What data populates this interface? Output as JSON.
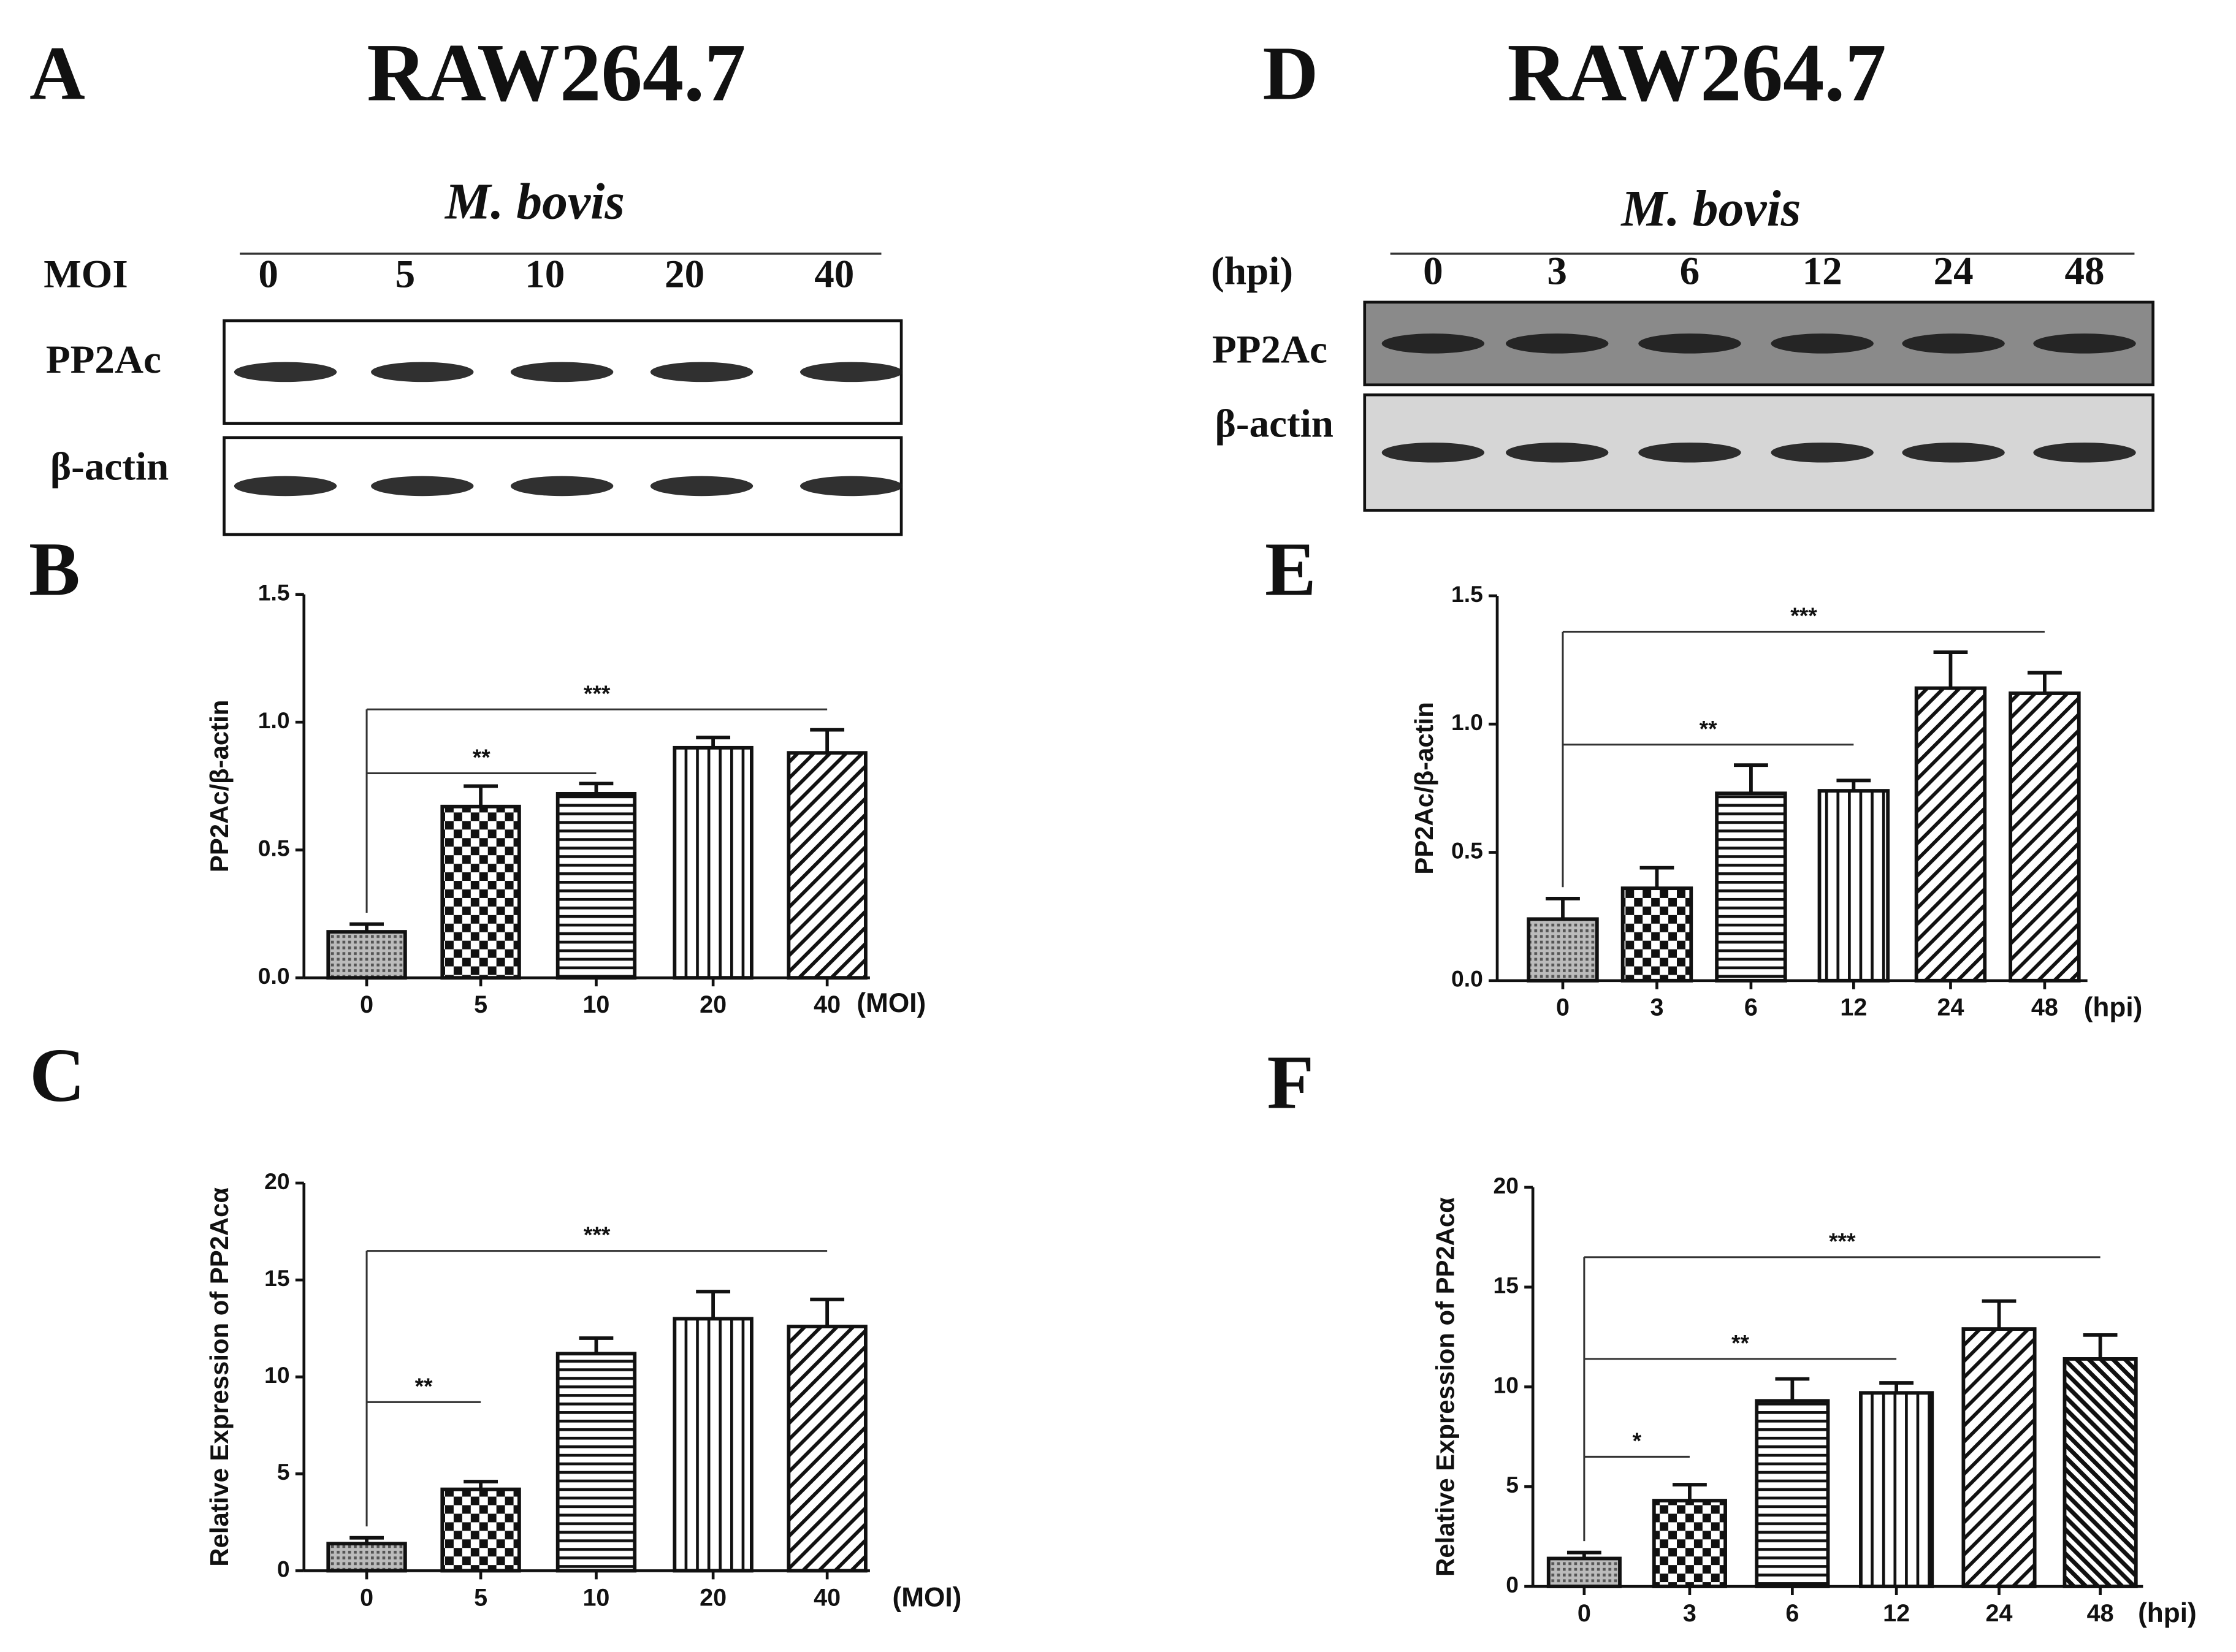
{
  "blots": [
    {
      "panel": "A",
      "title": "RAW264.7",
      "treatment": "M. bovis",
      "lane_header": "MOI",
      "lanes": [
        "0",
        "5",
        "10",
        "20",
        "40"
      ],
      "rows": [
        "PP2Ac",
        "β-actin"
      ]
    },
    {
      "panel": "D",
      "title": "RAW264.7",
      "treatment": "M. bovis",
      "lane_header": "(hpi)",
      "lanes": [
        "0",
        "3",
        "6",
        "12",
        "24",
        "48"
      ],
      "rows": [
        "PP2Ac",
        "β-actin"
      ]
    }
  ],
  "chart_data": [
    {
      "type": "bar",
      "panel": "B",
      "ylabel": "PP2Ac/β-actin",
      "xunit": "(MOI)",
      "categories": [
        "0",
        "5",
        "10",
        "20",
        "40"
      ],
      "values": [
        0.18,
        0.67,
        0.72,
        0.9,
        0.88
      ],
      "errors": [
        0.03,
        0.08,
        0.04,
        0.04,
        0.09
      ],
      "patterns": [
        "dots",
        "checker",
        "hlines",
        "vlines",
        "diag"
      ],
      "ylim": [
        0,
        1.5
      ],
      "yticks": [
        {
          "value": 0,
          "label": "0.0"
        },
        0.5,
        {
          "value": 1,
          "label": "1.0"
        },
        1.5
      ],
      "significance": [
        {
          "label": "**",
          "from": 0,
          "to": 2,
          "y": 0.8
        },
        {
          "label": "***",
          "from": 0,
          "to": 4,
          "y": 1.05
        }
      ]
    },
    {
      "type": "bar",
      "panel": "C",
      "ylabel": "Relative Expression of PP2Acα",
      "xunit": "(MOI)",
      "categories": [
        "0",
        "5",
        "10",
        "20",
        "40"
      ],
      "values": [
        1.4,
        4.2,
        11.2,
        13,
        12.6
      ],
      "errors": [
        0.3,
        0.4,
        0.8,
        1.4,
        1.4
      ],
      "patterns": [
        "dots",
        "checker",
        "hlines",
        "vlines",
        "diag"
      ],
      "ylim": [
        0,
        20
      ],
      "yticks": [
        0,
        5,
        10,
        15,
        20
      ],
      "significance": [
        {
          "label": "**",
          "from": 0,
          "to": 1,
          "y": 8.7
        },
        {
          "label": "***",
          "from": 0,
          "to": 4,
          "y": 16.5
        }
      ]
    },
    {
      "type": "bar",
      "panel": "E",
      "ylabel": "PP2Ac/β-actin",
      "xunit": "(hpi)",
      "categories": [
        "0",
        "3",
        "6",
        "12",
        "24",
        "48"
      ],
      "values": [
        0.24,
        0.36,
        0.73,
        0.74,
        1.14,
        1.12
      ],
      "errors": [
        0.08,
        0.08,
        0.11,
        0.04,
        0.14,
        0.08
      ],
      "patterns": [
        "dots",
        "checker",
        "hlines",
        "vlines",
        "diag",
        "diag"
      ],
      "ylim": [
        0,
        1.5
      ],
      "yticks": [
        {
          "value": 0,
          "label": "0.0"
        },
        0.5,
        {
          "value": 1,
          "label": "1.0"
        },
        1.5
      ],
      "significance": [
        {
          "label": "**",
          "from": 0,
          "to": 3,
          "y": 0.92
        },
        {
          "label": "***",
          "from": 0,
          "to": 5,
          "y": 1.36
        }
      ]
    },
    {
      "type": "bar",
      "panel": "F",
      "ylabel": "Relative Expression of PP2Acα",
      "xunit": "(hpi)",
      "categories": [
        "0",
        "3",
        "6",
        "12",
        "24",
        "48"
      ],
      "values": [
        1.4,
        4.3,
        9.3,
        9.7,
        12.9,
        11.4
      ],
      "errors": [
        0.3,
        0.8,
        1.1,
        0.5,
        1.4,
        1.2
      ],
      "patterns": [
        "dots",
        "checker",
        "hlines",
        "vlines",
        "diag",
        "diag2"
      ],
      "ylim": [
        0,
        20
      ],
      "yticks": [
        0,
        5,
        10,
        15,
        20
      ],
      "significance": [
        {
          "label": "*",
          "from": 0,
          "to": 1,
          "y": 6.5
        },
        {
          "label": "**",
          "from": 0,
          "to": 3,
          "y": 11.4
        },
        {
          "label": "***",
          "from": 0,
          "to": 5,
          "y": 16.5
        }
      ]
    }
  ]
}
